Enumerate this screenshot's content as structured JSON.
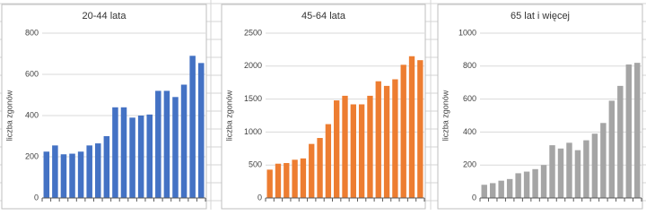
{
  "chart_data": [
    {
      "type": "bar",
      "title": "20-44 lata",
      "y_label": "liczba zgonów",
      "color": "#4472c4",
      "values": [
        225,
        255,
        212,
        215,
        225,
        255,
        265,
        300,
        440,
        440,
        390,
        400,
        405,
        520,
        520,
        490,
        550,
        690,
        655
      ],
      "ylim": [
        0,
        800
      ],
      "yticks": [
        0,
        200,
        400,
        600,
        800
      ],
      "grid": true
    },
    {
      "type": "bar",
      "title": "45-64 lata",
      "y_label": "liczba zgonów",
      "color": "#ed7d31",
      "values": [
        430,
        520,
        530,
        580,
        600,
        820,
        910,
        1120,
        1480,
        1550,
        1420,
        1420,
        1550,
        1770,
        1700,
        1800,
        2020,
        2150,
        2090
      ],
      "ylim": [
        0,
        2500
      ],
      "yticks": [
        0,
        500,
        1000,
        1500,
        2000,
        2500
      ],
      "grid": true
    },
    {
      "type": "bar",
      "title": "65 lat i więcej",
      "y_label": "liczba zgonów",
      "color": "#a5a5a5",
      "values": [
        80,
        90,
        105,
        115,
        150,
        160,
        175,
        200,
        320,
        300,
        335,
        290,
        350,
        390,
        455,
        590,
        680,
        810,
        820
      ],
      "ylim": [
        0,
        1000
      ],
      "yticks": [
        0,
        200,
        400,
        600,
        800,
        1000
      ],
      "grid": true
    }
  ]
}
